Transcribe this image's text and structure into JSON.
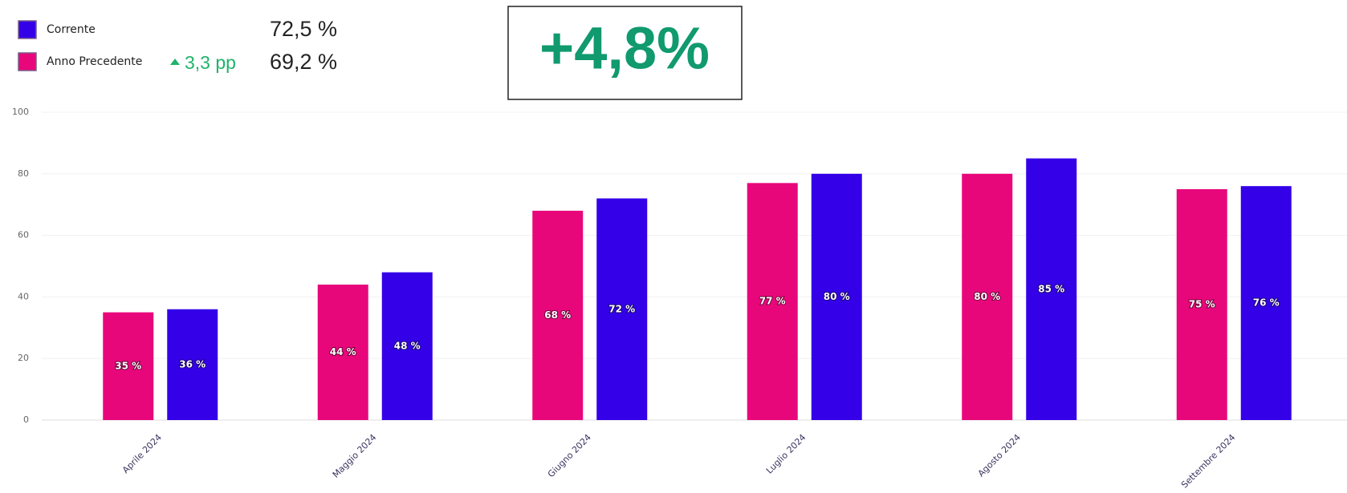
{
  "summary": {
    "current": "72,5 %",
    "previous": "69,2 %",
    "change": "3,3 pp",
    "highlight": "+4,8%"
  },
  "chart_data": {
    "type": "bar",
    "categories": [
      "Aprile 2024",
      "Maggio 2024",
      "Giugno 2024",
      "Luglio 2024",
      "Agosto 2024",
      "Settembre 2024"
    ],
    "series": [
      {
        "name": "Anno Precedente",
        "color": "#e8077b",
        "values": [
          35,
          44,
          68,
          77,
          80,
          75
        ],
        "value_labels": [
          "35 %",
          "44 %",
          "68 %",
          "77 %",
          "80 %",
          "75 %"
        ]
      },
      {
        "name": "Corrente",
        "color": "#3400e8",
        "values": [
          36,
          48,
          72,
          80,
          85,
          76
        ],
        "value_labels": [
          "36 %",
          "48 %",
          "72 %",
          "80 %",
          "85 %",
          "76 %"
        ]
      }
    ],
    "ylim": [
      0,
      100
    ],
    "yticks": [
      0,
      20,
      40,
      60,
      80,
      100
    ],
    "grid": true
  }
}
